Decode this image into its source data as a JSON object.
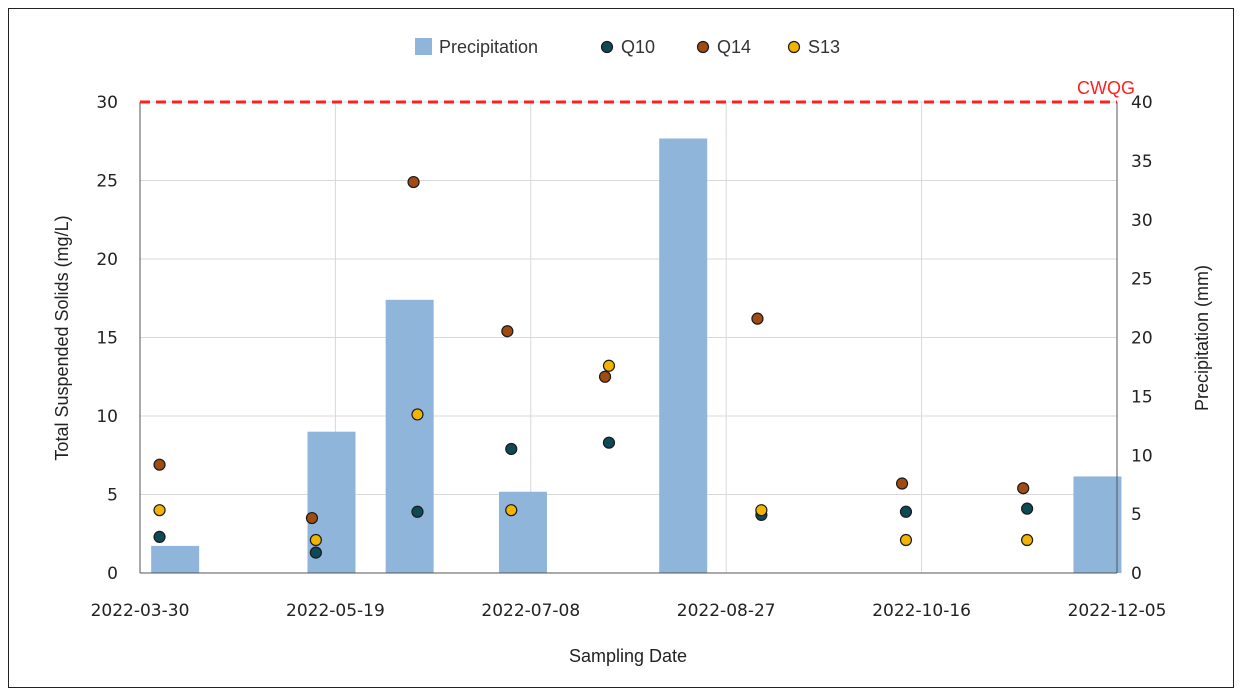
{
  "chart_data": {
    "type": "bar+scatter",
    "title": "",
    "xlabel": "Sampling Date",
    "ylabel": "Total Suspended Solids (mg/L)",
    "y2label": "Precipitation (mm)",
    "x_ticks": [
      "2022-03-30",
      "2022-05-19",
      "2022-07-08",
      "2022-08-27",
      "2022-10-16",
      "2022-12-05"
    ],
    "xlim": [
      "2022-03-30",
      "2022-12-05"
    ],
    "ylim": [
      0,
      30
    ],
    "y_ticks": [
      "0",
      "5",
      "10",
      "15",
      "20",
      "25",
      "30"
    ],
    "y2lim": [
      0,
      40
    ],
    "y2_ticks": [
      "0",
      "5",
      "10",
      "15",
      "20",
      "25",
      "30",
      "35",
      "40"
    ],
    "grid": true,
    "legend_position": "top-center",
    "reference_line": {
      "label": "CWQG",
      "y": 30,
      "color": "#ff2020"
    },
    "bars": {
      "name": "Precipitation",
      "color": "#8fb5db",
      "axis": "right",
      "x": [
        "2022-04-08",
        "2022-05-18",
        "2022-06-07",
        "2022-07-06",
        "2022-08-16",
        "2022-11-30"
      ],
      "values": [
        2.3,
        12.0,
        23.2,
        6.9,
        36.9,
        8.2
      ]
    },
    "series": [
      {
        "name": "Q10",
        "color": "#0d4a55",
        "x": [
          "2022-04-04",
          "2022-05-14",
          "2022-06-09",
          "2022-07-03",
          "2022-07-28",
          "2022-09-05",
          "2022-10-12",
          "2022-11-12"
        ],
        "values": [
          2.3,
          1.3,
          3.9,
          7.9,
          8.3,
          3.7,
          3.9,
          4.1
        ]
      },
      {
        "name": "Q14",
        "color": "#a04a14",
        "x": [
          "2022-04-04",
          "2022-05-13",
          "2022-06-08",
          "2022-07-02",
          "2022-07-27",
          "2022-09-04",
          "2022-10-11",
          "2022-11-11"
        ],
        "values": [
          6.9,
          3.5,
          24.9,
          15.4,
          12.5,
          16.2,
          5.7,
          5.4
        ]
      },
      {
        "name": "S13",
        "color": "#f2b400",
        "x": [
          "2022-04-04",
          "2022-05-14",
          "2022-06-09",
          "2022-07-03",
          "2022-07-28",
          "2022-09-05",
          "2022-10-12",
          "2022-11-12"
        ],
        "values": [
          4.0,
          2.1,
          10.1,
          4.0,
          13.2,
          4.0,
          2.1,
          2.1
        ]
      }
    ]
  }
}
